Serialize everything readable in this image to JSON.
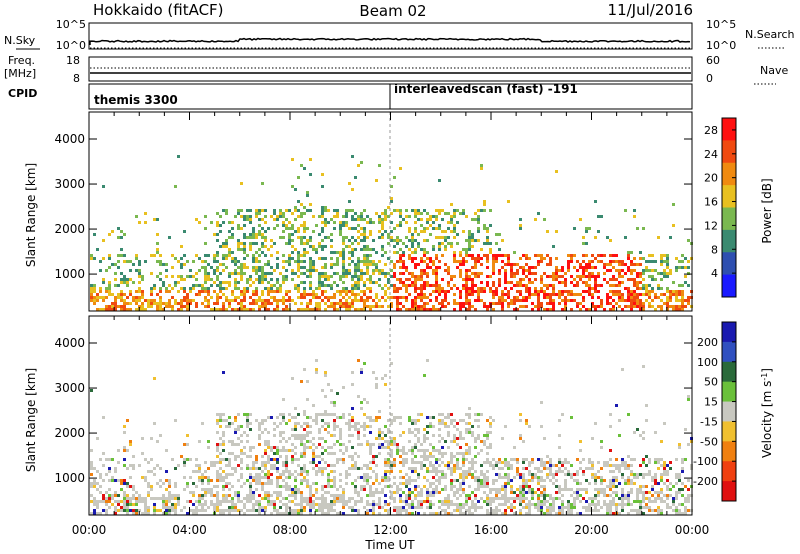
{
  "header": {
    "station": "Hokkaido (fitACF)",
    "beam": "Beam 02",
    "date": "11/Jul/2016"
  },
  "colors": {
    "power_scale": [
      "#1a1aff",
      "#2e4fb0",
      "#3a8a70",
      "#7ab850",
      "#e8c020",
      "#f08a10",
      "#f04a10",
      "#ff1010"
    ],
    "velocity_scale": [
      "#1a1ab0",
      "#3050c0",
      "#2a6a3a",
      "#6ac03a",
      "#c8c8c0",
      "#f0c030",
      "#f08010",
      "#f04010",
      "#e01010"
    ]
  },
  "top_panels": {
    "nsky": {
      "label": "N.Sky",
      "ticks": [
        "10^5",
        "10^0"
      ],
      "right_ticks": [
        "10^5",
        "10^0"
      ],
      "right_label": "N.Search"
    },
    "freq": {
      "label": "Freq.",
      "unit": "[MHz]",
      "ticks": [
        "18",
        "8"
      ],
      "right_ticks": [
        "60",
        "0"
      ],
      "right_label": "Nave"
    },
    "cpid": {
      "label": "CPID",
      "modes": [
        "themis 3300",
        "interleavedscan (fast) -191"
      ]
    }
  },
  "chart_data": [
    {
      "type": "heatmap",
      "title": "",
      "xlabel": "",
      "ylabel": "Slant Range [km]",
      "x_ticks": [
        "00:00",
        "04:00",
        "08:00",
        "12:00",
        "16:00",
        "20:00",
        "00:00"
      ],
      "xlim": [
        0,
        24
      ],
      "y_ticks": [
        1000,
        2000,
        3000,
        4000
      ],
      "ylim": [
        180,
        4600
      ],
      "colorbar": {
        "label": "Power [dB]",
        "ticks": [
          4,
          8,
          12,
          16,
          20,
          24,
          28
        ],
        "range": [
          0,
          30
        ]
      }
    },
    {
      "type": "heatmap",
      "title": "",
      "xlabel": "Time UT",
      "ylabel": "Slant Range [km]",
      "x_ticks": [
        "00:00",
        "04:00",
        "08:00",
        "12:00",
        "16:00",
        "20:00",
        "00:00"
      ],
      "xlim": [
        0,
        24
      ],
      "y_ticks": [
        1000,
        2000,
        3000,
        4000
      ],
      "ylim": [
        180,
        4600
      ],
      "colorbar": {
        "label": "Velocity [m s^-1]",
        "ticks": [
          200,
          100,
          50,
          15,
          -15,
          -50,
          -100,
          -200
        ]
      }
    }
  ]
}
